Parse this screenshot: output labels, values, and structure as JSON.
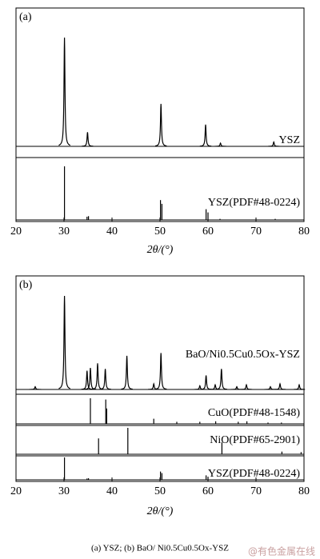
{
  "chart_data": [
    {
      "type": "xrd",
      "panel_label": "(a)",
      "xlabel": "2θ/(°)",
      "xlim": [
        20,
        80
      ],
      "xticks": [
        20,
        30,
        40,
        50,
        60,
        70,
        80
      ],
      "ylim": [
        0,
        100
      ],
      "series": [
        {
          "name": "YSZ",
          "color": "#000000",
          "style": "profile",
          "x": [
            30.1,
            34.9,
            50.2,
            59.5,
            62.6,
            73.7
          ],
          "values": [
            100,
            13,
            39,
            20,
            3,
            4
          ]
        },
        {
          "name": "YSZ(PDF#48-0224)",
          "color": "#000000",
          "style": "stick",
          "x": [
            30.1,
            34.8,
            35.1,
            50.1,
            50.4,
            59.6,
            60.0,
            62.5,
            74.0
          ],
          "values": [
            100,
            6,
            7,
            37,
            30,
            20,
            14,
            2,
            2
          ]
        }
      ]
    },
    {
      "type": "xrd",
      "panel_label": "(b)",
      "xlabel": "2θ/(°)",
      "xlim": [
        20,
        80
      ],
      "xticks": [
        20,
        30,
        40,
        50,
        60,
        70,
        80
      ],
      "ylim": [
        0,
        100
      ],
      "series": [
        {
          "name": "BaO/Ni0.5Cu0.5Ox-YSZ",
          "color": "#000000",
          "style": "profile",
          "x": [
            24.0,
            30.1,
            34.8,
            35.5,
            37.0,
            38.6,
            43.1,
            48.7,
            50.2,
            58.3,
            59.6,
            61.5,
            62.8,
            66.0,
            68.0,
            73.0,
            75.0,
            79.0
          ],
          "values": [
            3,
            100,
            20,
            23,
            28,
            22,
            36,
            6,
            39,
            4,
            15,
            5,
            22,
            3,
            5,
            3,
            6,
            5
          ]
        },
        {
          "name": "CuO(PDF#48-1548)",
          "color": "#000000",
          "style": "stick",
          "x": [
            35.5,
            38.7,
            38.9,
            48.7,
            53.5,
            58.3,
            61.6,
            66.3,
            68.1,
            72.5,
            75.3
          ],
          "values": [
            100,
            95,
            60,
            20,
            8,
            8,
            10,
            8,
            10,
            5,
            5
          ]
        },
        {
          "name": "NiO(PDF#65-2901)",
          "color": "#000000",
          "style": "stick",
          "x": [
            37.2,
            43.3,
            62.9,
            75.4,
            79.4
          ],
          "values": [
            60,
            100,
            45,
            10,
            8
          ]
        },
        {
          "name": "YSZ(PDF#48-0224)",
          "color": "#000000",
          "style": "stick",
          "x": [
            30.1,
            34.8,
            35.1,
            50.1,
            50.4,
            59.6,
            60.0,
            62.5,
            74.0
          ],
          "values": [
            100,
            6,
            7,
            37,
            30,
            20,
            14,
            2,
            2
          ]
        }
      ]
    }
  ],
  "caption": "(a) YSZ; (b) BaO/ Ni0.5Cu0.5Ox-YSZ",
  "watermark": "@有色金属在线"
}
